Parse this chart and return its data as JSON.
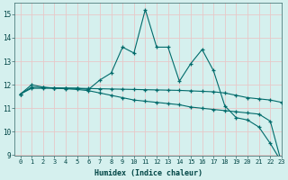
{
  "xlabel": "Humidex (Indice chaleur)",
  "bg_color": "#d5f0ee",
  "grid_color": "#e8c8c8",
  "line_color": "#006b6b",
  "xlim": [
    -0.5,
    23
  ],
  "ylim": [
    9,
    15.5
  ],
  "yticks": [
    9,
    10,
    11,
    12,
    13,
    14,
    15
  ],
  "xticks": [
    0,
    1,
    2,
    3,
    4,
    5,
    6,
    7,
    8,
    9,
    10,
    11,
    12,
    13,
    14,
    15,
    16,
    17,
    18,
    19,
    20,
    21,
    22,
    23
  ],
  "line1_x": [
    0,
    1,
    2,
    3,
    4,
    5,
    6,
    7,
    8,
    9,
    10,
    11,
    12,
    13,
    14,
    15,
    16,
    17,
    18,
    19,
    20,
    21,
    22,
    23
  ],
  "line1_y": [
    11.6,
    12.0,
    11.9,
    11.85,
    11.85,
    11.85,
    11.8,
    12.2,
    12.5,
    13.6,
    13.35,
    15.2,
    13.6,
    13.6,
    12.15,
    12.9,
    13.5,
    12.6,
    11.1,
    10.6,
    10.5,
    10.2,
    9.5,
    8.7
  ],
  "line2_x": [
    0,
    1,
    2,
    3,
    4,
    5,
    6,
    7,
    8,
    9,
    10,
    11,
    12,
    13,
    14,
    15,
    16,
    17,
    18,
    19,
    20,
    21,
    22,
    23
  ],
  "line2_y": [
    11.6,
    11.9,
    11.88,
    11.87,
    11.86,
    11.85,
    11.84,
    11.83,
    11.82,
    11.81,
    11.8,
    11.79,
    11.78,
    11.77,
    11.76,
    11.74,
    11.72,
    11.7,
    11.65,
    11.55,
    11.45,
    11.4,
    11.35,
    11.25
  ],
  "line3_x": [
    0,
    1,
    2,
    3,
    4,
    5,
    6,
    7,
    8,
    9,
    10,
    11,
    12,
    13,
    14,
    15,
    16,
    17,
    18,
    19,
    20,
    21,
    22,
    23
  ],
  "line3_y": [
    11.6,
    11.85,
    11.85,
    11.85,
    11.83,
    11.8,
    11.75,
    11.65,
    11.55,
    11.45,
    11.35,
    11.3,
    11.25,
    11.2,
    11.15,
    11.05,
    11.0,
    10.95,
    10.9,
    10.85,
    10.8,
    10.75,
    10.45,
    8.65
  ]
}
